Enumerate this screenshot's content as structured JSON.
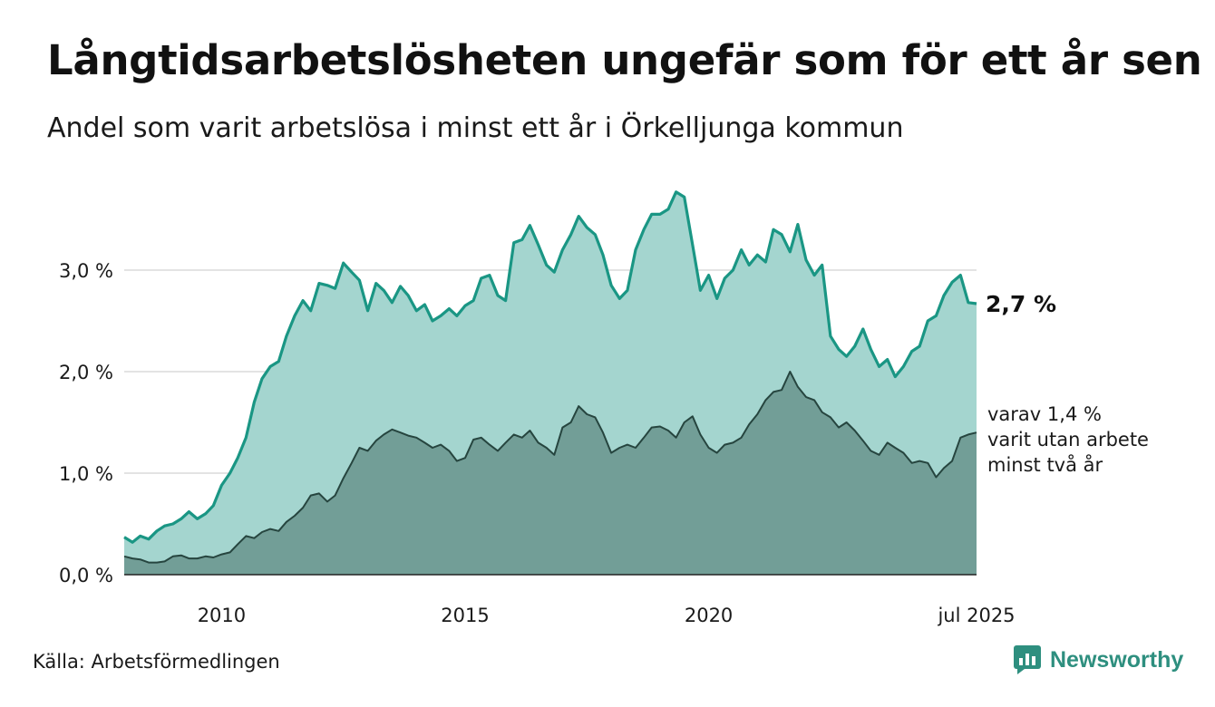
{
  "title": "Långtidsarbetslösheten ungefär som för ett år sen",
  "subtitle": "Andel som varit arbetslösa i minst ett år i Örkelljunga kommun",
  "source": "Källa: Arbetsförmedlingen",
  "brand": {
    "name": "Newsworthy",
    "icon": "newsworthy-logo-icon",
    "color": "#2e8f7f"
  },
  "chart_data": {
    "type": "area",
    "x_unit": "year",
    "x_range": [
      2008,
      2025.5
    ],
    "ylim": [
      0,
      4
    ],
    "y_ticks": [
      {
        "value": 0,
        "label": "0,0 %"
      },
      {
        "value": 1,
        "label": "1,0 %"
      },
      {
        "value": 2,
        "label": "2,0 %"
      },
      {
        "value": 3,
        "label": "3,0 %"
      }
    ],
    "x_ticks": [
      {
        "value": 2010,
        "label": "2010"
      },
      {
        "value": 2015,
        "label": "2015"
      },
      {
        "value": 2020,
        "label": "2020"
      },
      {
        "value": 2025.5,
        "label": "jul 2025"
      }
    ],
    "grid": true,
    "series": [
      {
        "key": "total",
        "fill": "#a4d5cf",
        "stroke": "#1a9684",
        "end_label": "2,7 %",
        "points": [
          [
            2008.0,
            0.37
          ],
          [
            2008.17,
            0.32
          ],
          [
            2008.33,
            0.38
          ],
          [
            2008.5,
            0.35
          ],
          [
            2008.67,
            0.43
          ],
          [
            2008.83,
            0.48
          ],
          [
            2009.0,
            0.5
          ],
          [
            2009.17,
            0.55
          ],
          [
            2009.33,
            0.62
          ],
          [
            2009.5,
            0.55
          ],
          [
            2009.67,
            0.6
          ],
          [
            2009.83,
            0.68
          ],
          [
            2010.0,
            0.88
          ],
          [
            2010.17,
            1.0
          ],
          [
            2010.33,
            1.15
          ],
          [
            2010.5,
            1.35
          ],
          [
            2010.67,
            1.7
          ],
          [
            2010.83,
            1.93
          ],
          [
            2011.0,
            2.05
          ],
          [
            2011.17,
            2.1
          ],
          [
            2011.33,
            2.35
          ],
          [
            2011.5,
            2.55
          ],
          [
            2011.67,
            2.7
          ],
          [
            2011.83,
            2.6
          ],
          [
            2012.0,
            2.87
          ],
          [
            2012.17,
            2.85
          ],
          [
            2012.33,
            2.82
          ],
          [
            2012.5,
            3.07
          ],
          [
            2012.67,
            2.98
          ],
          [
            2012.83,
            2.9
          ],
          [
            2013.0,
            2.6
          ],
          [
            2013.17,
            2.87
          ],
          [
            2013.33,
            2.8
          ],
          [
            2013.5,
            2.68
          ],
          [
            2013.67,
            2.84
          ],
          [
            2013.83,
            2.75
          ],
          [
            2014.0,
            2.6
          ],
          [
            2014.17,
            2.66
          ],
          [
            2014.33,
            2.5
          ],
          [
            2014.5,
            2.55
          ],
          [
            2014.67,
            2.62
          ],
          [
            2014.83,
            2.55
          ],
          [
            2015.0,
            2.65
          ],
          [
            2015.17,
            2.7
          ],
          [
            2015.33,
            2.92
          ],
          [
            2015.5,
            2.95
          ],
          [
            2015.67,
            2.75
          ],
          [
            2015.83,
            2.7
          ],
          [
            2016.0,
            3.27
          ],
          [
            2016.17,
            3.3
          ],
          [
            2016.33,
            3.44
          ],
          [
            2016.5,
            3.25
          ],
          [
            2016.67,
            3.05
          ],
          [
            2016.83,
            2.98
          ],
          [
            2017.0,
            3.2
          ],
          [
            2017.17,
            3.35
          ],
          [
            2017.33,
            3.53
          ],
          [
            2017.5,
            3.42
          ],
          [
            2017.67,
            3.35
          ],
          [
            2017.83,
            3.15
          ],
          [
            2018.0,
            2.85
          ],
          [
            2018.17,
            2.72
          ],
          [
            2018.33,
            2.8
          ],
          [
            2018.5,
            3.2
          ],
          [
            2018.67,
            3.4
          ],
          [
            2018.83,
            3.55
          ],
          [
            2019.0,
            3.55
          ],
          [
            2019.17,
            3.6
          ],
          [
            2019.33,
            3.77
          ],
          [
            2019.5,
            3.72
          ],
          [
            2019.67,
            3.25
          ],
          [
            2019.83,
            2.8
          ],
          [
            2020.0,
            2.95
          ],
          [
            2020.17,
            2.72
          ],
          [
            2020.33,
            2.92
          ],
          [
            2020.5,
            3.0
          ],
          [
            2020.67,
            3.2
          ],
          [
            2020.83,
            3.05
          ],
          [
            2021.0,
            3.15
          ],
          [
            2021.17,
            3.08
          ],
          [
            2021.33,
            3.4
          ],
          [
            2021.5,
            3.35
          ],
          [
            2021.67,
            3.18
          ],
          [
            2021.83,
            3.45
          ],
          [
            2022.0,
            3.1
          ],
          [
            2022.17,
            2.95
          ],
          [
            2022.33,
            3.05
          ],
          [
            2022.5,
            2.35
          ],
          [
            2022.67,
            2.22
          ],
          [
            2022.83,
            2.15
          ],
          [
            2023.0,
            2.25
          ],
          [
            2023.17,
            2.42
          ],
          [
            2023.33,
            2.22
          ],
          [
            2023.5,
            2.05
          ],
          [
            2023.67,
            2.12
          ],
          [
            2023.83,
            1.95
          ],
          [
            2024.0,
            2.05
          ],
          [
            2024.17,
            2.2
          ],
          [
            2024.33,
            2.25
          ],
          [
            2024.5,
            2.5
          ],
          [
            2024.67,
            2.55
          ],
          [
            2024.83,
            2.75
          ],
          [
            2025.0,
            2.88
          ],
          [
            2025.17,
            2.95
          ],
          [
            2025.33,
            2.68
          ],
          [
            2025.5,
            2.67
          ]
        ]
      },
      {
        "key": "two_years",
        "fill": "#729e97",
        "stroke": "#26453f",
        "end_label": [
          "varav 1,4 %",
          "varit utan arbete",
          "minst två år"
        ],
        "points": [
          [
            2008.0,
            0.18
          ],
          [
            2008.17,
            0.16
          ],
          [
            2008.33,
            0.15
          ],
          [
            2008.5,
            0.12
          ],
          [
            2008.67,
            0.12
          ],
          [
            2008.83,
            0.13
          ],
          [
            2009.0,
            0.18
          ],
          [
            2009.17,
            0.19
          ],
          [
            2009.33,
            0.16
          ],
          [
            2009.5,
            0.16
          ],
          [
            2009.67,
            0.18
          ],
          [
            2009.83,
            0.17
          ],
          [
            2010.0,
            0.2
          ],
          [
            2010.17,
            0.22
          ],
          [
            2010.33,
            0.3
          ],
          [
            2010.5,
            0.38
          ],
          [
            2010.67,
            0.36
          ],
          [
            2010.83,
            0.42
          ],
          [
            2011.0,
            0.45
          ],
          [
            2011.17,
            0.43
          ],
          [
            2011.33,
            0.52
          ],
          [
            2011.5,
            0.58
          ],
          [
            2011.67,
            0.66
          ],
          [
            2011.83,
            0.78
          ],
          [
            2012.0,
            0.8
          ],
          [
            2012.17,
            0.72
          ],
          [
            2012.33,
            0.78
          ],
          [
            2012.5,
            0.95
          ],
          [
            2012.67,
            1.1
          ],
          [
            2012.83,
            1.25
          ],
          [
            2013.0,
            1.22
          ],
          [
            2013.17,
            1.32
          ],
          [
            2013.33,
            1.38
          ],
          [
            2013.5,
            1.43
          ],
          [
            2013.67,
            1.4
          ],
          [
            2013.83,
            1.37
          ],
          [
            2014.0,
            1.35
          ],
          [
            2014.17,
            1.3
          ],
          [
            2014.33,
            1.25
          ],
          [
            2014.5,
            1.28
          ],
          [
            2014.67,
            1.22
          ],
          [
            2014.83,
            1.12
          ],
          [
            2015.0,
            1.15
          ],
          [
            2015.17,
            1.33
          ],
          [
            2015.33,
            1.35
          ],
          [
            2015.5,
            1.28
          ],
          [
            2015.67,
            1.22
          ],
          [
            2015.83,
            1.3
          ],
          [
            2016.0,
            1.38
          ],
          [
            2016.17,
            1.35
          ],
          [
            2016.33,
            1.42
          ],
          [
            2016.5,
            1.3
          ],
          [
            2016.67,
            1.25
          ],
          [
            2016.83,
            1.18
          ],
          [
            2017.0,
            1.45
          ],
          [
            2017.17,
            1.5
          ],
          [
            2017.33,
            1.66
          ],
          [
            2017.5,
            1.58
          ],
          [
            2017.67,
            1.55
          ],
          [
            2017.83,
            1.4
          ],
          [
            2018.0,
            1.2
          ],
          [
            2018.17,
            1.25
          ],
          [
            2018.33,
            1.28
          ],
          [
            2018.5,
            1.25
          ],
          [
            2018.67,
            1.35
          ],
          [
            2018.83,
            1.45
          ],
          [
            2019.0,
            1.46
          ],
          [
            2019.17,
            1.42
          ],
          [
            2019.33,
            1.35
          ],
          [
            2019.5,
            1.5
          ],
          [
            2019.67,
            1.56
          ],
          [
            2019.83,
            1.38
          ],
          [
            2020.0,
            1.25
          ],
          [
            2020.17,
            1.2
          ],
          [
            2020.33,
            1.28
          ],
          [
            2020.5,
            1.3
          ],
          [
            2020.67,
            1.35
          ],
          [
            2020.83,
            1.48
          ],
          [
            2021.0,
            1.58
          ],
          [
            2021.17,
            1.72
          ],
          [
            2021.33,
            1.8
          ],
          [
            2021.5,
            1.82
          ],
          [
            2021.67,
            2.0
          ],
          [
            2021.83,
            1.85
          ],
          [
            2022.0,
            1.75
          ],
          [
            2022.17,
            1.72
          ],
          [
            2022.33,
            1.6
          ],
          [
            2022.5,
            1.55
          ],
          [
            2022.67,
            1.45
          ],
          [
            2022.83,
            1.5
          ],
          [
            2023.0,
            1.42
          ],
          [
            2023.17,
            1.32
          ],
          [
            2023.33,
            1.22
          ],
          [
            2023.5,
            1.18
          ],
          [
            2023.67,
            1.3
          ],
          [
            2023.83,
            1.25
          ],
          [
            2024.0,
            1.2
          ],
          [
            2024.17,
            1.1
          ],
          [
            2024.33,
            1.12
          ],
          [
            2024.5,
            1.1
          ],
          [
            2024.67,
            0.96
          ],
          [
            2024.83,
            1.05
          ],
          [
            2025.0,
            1.12
          ],
          [
            2025.17,
            1.35
          ],
          [
            2025.33,
            1.38
          ],
          [
            2025.5,
            1.4
          ]
        ]
      }
    ]
  }
}
